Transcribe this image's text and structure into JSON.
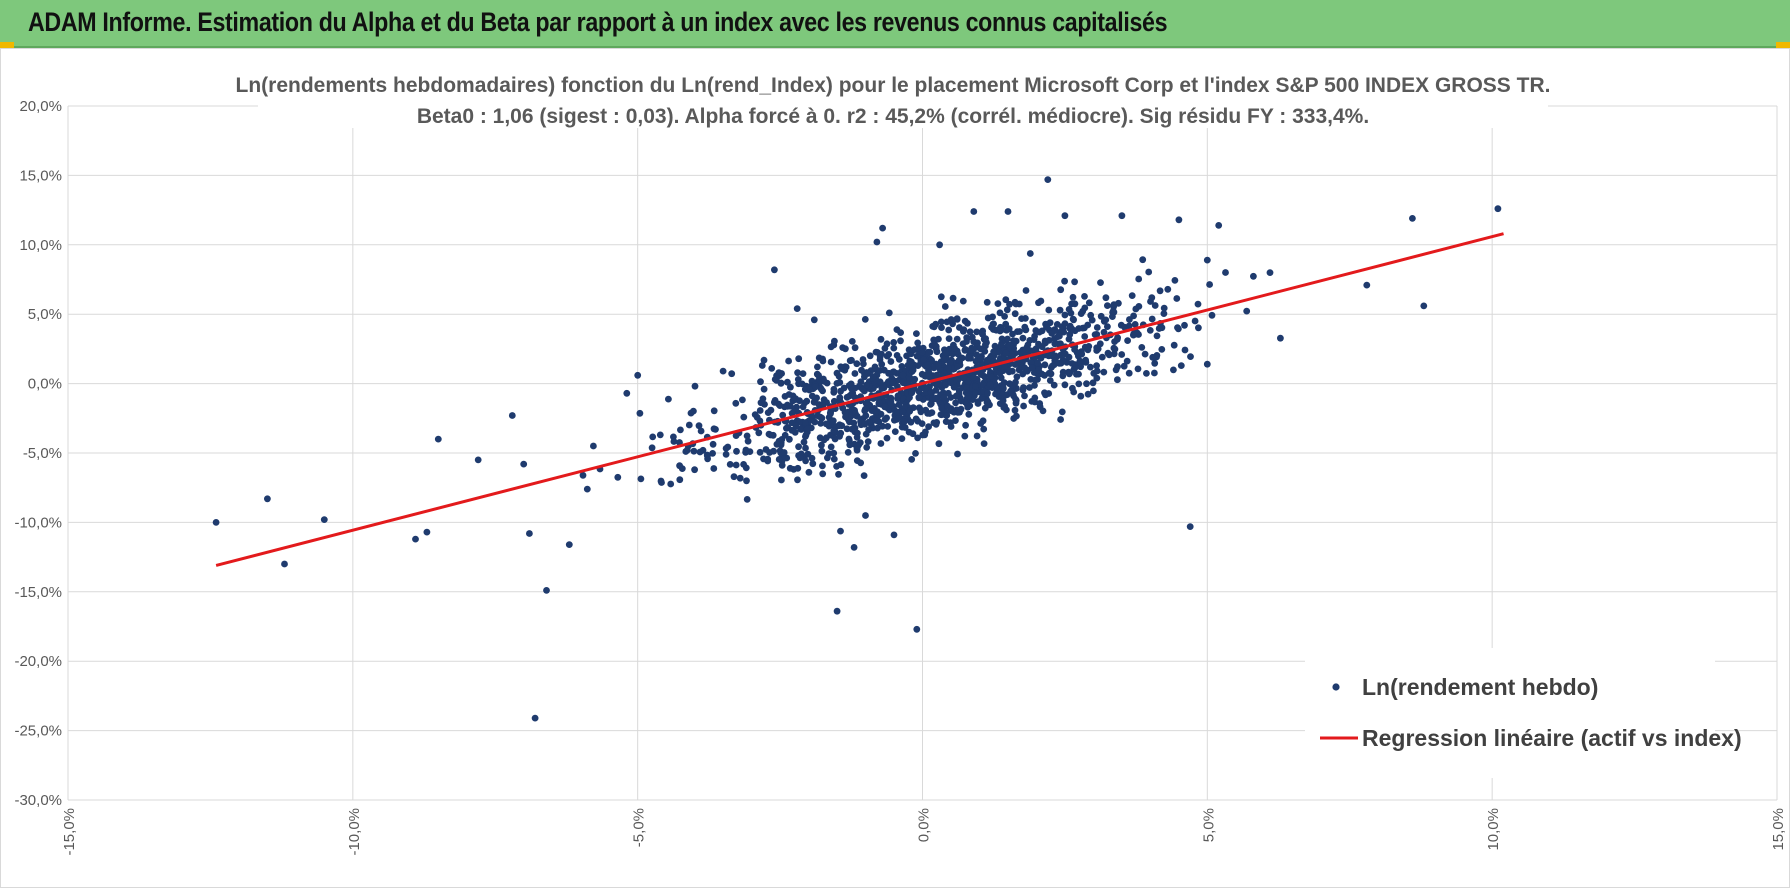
{
  "header": {
    "title": "ADAM Informe. Estimation du Alpha et du Beta par rapport à un index avec les revenus connus capitalisés",
    "background": "#7ec87c",
    "corner_color": "#f0b800"
  },
  "chart_data": {
    "type": "scatter",
    "title_line1": "Ln(rendements hebdomadaires) fonction du Ln(rend_Index) pour le placement Microsoft Corp et l'index S&P 500 INDEX GROSS TR.",
    "title_line2": "Beta0 : 1,06 (sigest : 0,03). Alpha forcé à 0. r2 : 45,2% (corrél. médiocre). Sig résidu FY : 333,4%.",
    "xlabel": "",
    "ylabel": "",
    "xlim": [
      -15,
      15
    ],
    "ylim": [
      -30,
      20
    ],
    "x_ticks": [
      "-15,0%",
      "-10,0%",
      "-5,0%",
      "0,0%",
      "5,0%",
      "10,0%",
      "15,0%"
    ],
    "y_ticks": [
      "20,0%",
      "15,0%",
      "10,0%",
      "5,0%",
      "0,0%",
      "-5,0%",
      "-10,0%",
      "-15,0%",
      "-20,0%",
      "-25,0%",
      "-30,0%"
    ],
    "grid": true,
    "legend_position": "bottom-right",
    "beta": 1.06,
    "alpha": 0,
    "series": [
      {
        "name": "Ln(rendement hebdo)",
        "color": "#1f3b6e",
        "points": [
          [
            -12.4,
            -10.0
          ],
          [
            -11.5,
            -8.3
          ],
          [
            -11.2,
            -13.0
          ],
          [
            -10.5,
            -9.8
          ],
          [
            -8.9,
            -11.2
          ],
          [
            -8.5,
            -4.0
          ],
          [
            -8.7,
            -10.7
          ],
          [
            -7.8,
            -5.5
          ],
          [
            -7.2,
            -2.3
          ],
          [
            -7.0,
            -5.8
          ],
          [
            -6.9,
            -10.8
          ],
          [
            -6.8,
            -24.1
          ],
          [
            -6.6,
            -14.9
          ],
          [
            -6.2,
            -11.6
          ],
          [
            -5.0,
            0.6
          ],
          [
            -2.6,
            8.2
          ],
          [
            -2.2,
            5.4
          ],
          [
            -1.5,
            -16.4
          ],
          [
            -1.2,
            -11.8
          ],
          [
            -1.0,
            -9.5
          ],
          [
            -0.5,
            -10.9
          ],
          [
            -0.1,
            -17.7
          ],
          [
            -0.7,
            11.2
          ],
          [
            -0.8,
            10.2
          ],
          [
            0.3,
            10.0
          ],
          [
            0.9,
            12.4
          ],
          [
            1.5,
            12.4
          ],
          [
            2.2,
            14.7
          ],
          [
            2.5,
            12.1
          ],
          [
            3.5,
            12.1
          ],
          [
            4.5,
            11.8
          ],
          [
            5.2,
            11.4
          ],
          [
            5.0,
            8.9
          ],
          [
            6.1,
            8.0
          ],
          [
            7.8,
            7.1
          ],
          [
            8.8,
            5.6
          ],
          [
            8.6,
            11.9
          ],
          [
            10.1,
            12.6
          ],
          [
            4.7,
            -10.3
          ],
          [
            5.0,
            1.4
          ],
          [
            3.6,
            3.1
          ],
          [
            4.6,
            4.2
          ],
          [
            -1.9,
            4.6
          ],
          [
            -3.5,
            0.9
          ],
          [
            -4.0,
            -6.2
          ]
        ]
      },
      {
        "name": "Regression linéaire (actif vs index)",
        "color": "#e31a1c",
        "line": [
          [
            -12.4,
            -13.1
          ],
          [
            10.2,
            10.8
          ]
        ]
      }
    ]
  }
}
